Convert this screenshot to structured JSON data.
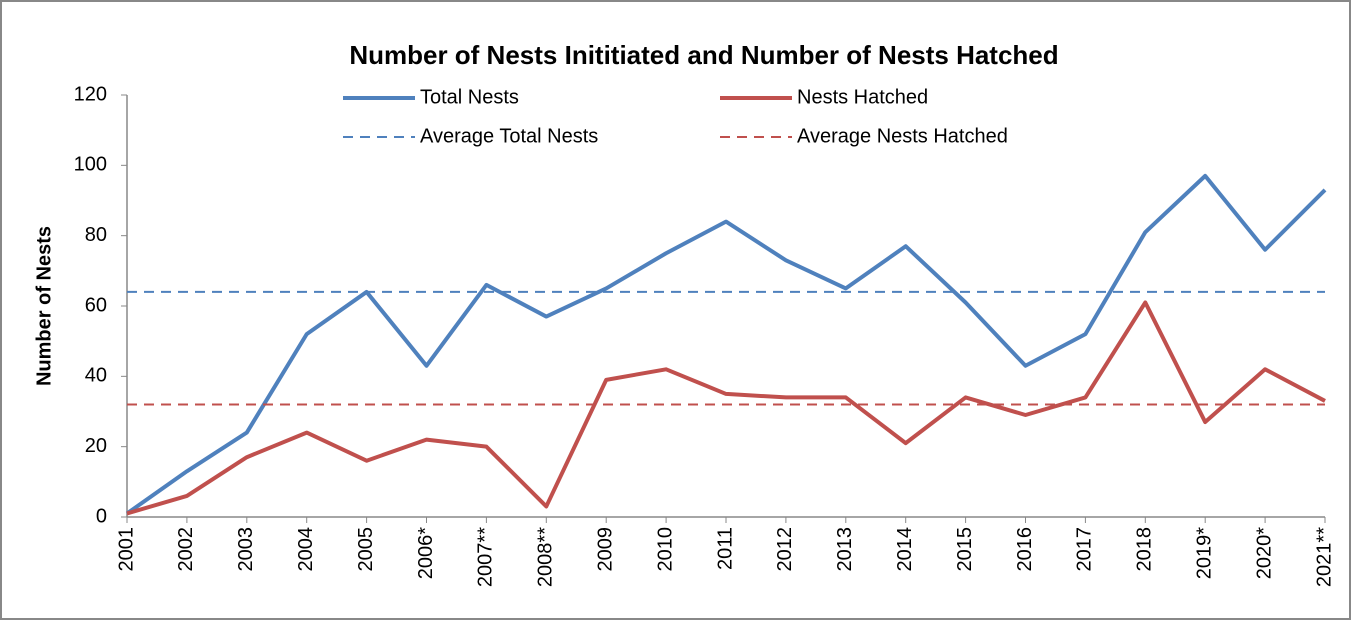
{
  "chart_data": {
    "type": "line",
    "title": "Number of Nests Inititiated and Number of Nests Hatched",
    "y_label": "Number of Nests",
    "categories": [
      "2001",
      "2002",
      "2003",
      "2004",
      "2005",
      "2006*",
      "2007**",
      "2008**",
      "2009",
      "2010",
      "2011",
      "2012",
      "2013",
      "2014",
      "2015",
      "2016",
      "2017",
      "2018",
      "2019*",
      "2020*",
      "2021**"
    ],
    "series": [
      {
        "name": "Total Nests",
        "color": "#4f81bd",
        "dashed": false,
        "values": [
          1,
          13,
          24,
          52,
          64,
          43,
          66,
          57,
          65,
          75,
          84,
          73,
          65,
          77,
          61,
          43,
          52,
          81,
          97,
          76,
          93
        ]
      },
      {
        "name": "Nests Hatched",
        "color": "#c0504d",
        "dashed": false,
        "values": [
          1,
          6,
          17,
          24,
          16,
          22,
          20,
          3,
          39,
          42,
          35,
          34,
          34,
          21,
          34,
          29,
          34,
          61,
          27,
          42,
          33
        ]
      },
      {
        "name": "Average Total Nests",
        "color": "#4f81bd",
        "dashed": true,
        "values": [
          64,
          64,
          64,
          64,
          64,
          64,
          64,
          64,
          64,
          64,
          64,
          64,
          64,
          64,
          64,
          64,
          64,
          64,
          64,
          64,
          64
        ]
      },
      {
        "name": "Average Nests Hatched",
        "color": "#c0504d",
        "dashed": true,
        "values": [
          32,
          32,
          32,
          32,
          32,
          32,
          32,
          32,
          32,
          32,
          32,
          32,
          32,
          32,
          32,
          32,
          32,
          32,
          32,
          32,
          32
        ]
      }
    ],
    "ylim": [
      0,
      120
    ],
    "yticks": [
      0,
      20,
      40,
      60,
      80,
      100,
      120
    ],
    "grid": false
  }
}
